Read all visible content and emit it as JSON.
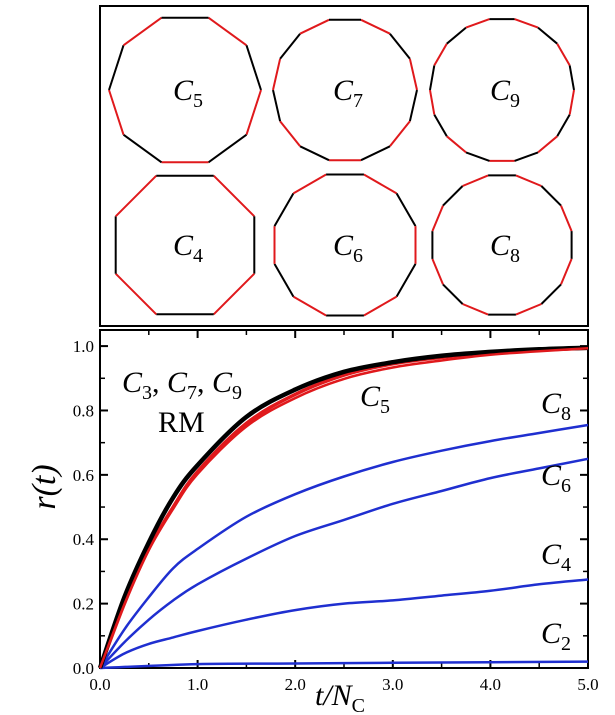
{
  "top_panel": {
    "polygons": [
      {
        "base": "C",
        "sub": "5",
        "sides": 10
      },
      {
        "base": "C",
        "sub": "7",
        "sides": 14
      },
      {
        "base": "C",
        "sub": "9",
        "sides": 18
      },
      {
        "base": "C",
        "sub": "4",
        "sides": 8
      },
      {
        "base": "C",
        "sub": "6",
        "sides": 12
      },
      {
        "base": "C",
        "sub": "8",
        "sides": 16
      }
    ],
    "colors": {
      "red": "#e0191c",
      "black": "#000000"
    }
  },
  "chart_data": {
    "type": "line",
    "xlabel": "t/N",
    "xlabel_sub": "C",
    "ylabel": "r(t)",
    "xlim": [
      0,
      5
    ],
    "ylim": [
      0,
      1.05
    ],
    "x_ticks": [
      "0.0",
      "1.0",
      "2.0",
      "3.0",
      "4.0",
      "5.0"
    ],
    "y_ticks": [
      "0.0",
      "0.2",
      "0.4",
      "0.6",
      "0.8",
      "1.0"
    ],
    "annotations": [
      {
        "text": "C3, C7, C9",
        "base": [
          "C",
          "C",
          "C"
        ],
        "subs": [
          "3",
          "7",
          "9"
        ]
      },
      {
        "text": "RM"
      },
      {
        "base": "C",
        "sub": "5"
      },
      {
        "base": "C",
        "sub": "8"
      },
      {
        "base": "C",
        "sub": "6"
      },
      {
        "base": "C",
        "sub": "4"
      },
      {
        "base": "C",
        "sub": "2"
      }
    ],
    "series": [
      {
        "label": "C3, C7, C9, RM",
        "color": "#000000",
        "x": [
          0,
          0.25,
          0.5,
          0.75,
          1.0,
          1.5,
          2.0,
          2.5,
          3.0,
          3.5,
          4.0,
          4.5,
          5.0
        ],
        "y": [
          0,
          0.22,
          0.39,
          0.53,
          0.63,
          0.78,
          0.865,
          0.92,
          0.95,
          0.97,
          0.982,
          0.99,
          0.995
        ]
      },
      {
        "label": "C5",
        "color": "#e0191c",
        "x": [
          0,
          0.25,
          0.5,
          0.75,
          1.0,
          1.5,
          2.0,
          2.5,
          3.0,
          3.5,
          4.0,
          4.5,
          5.0
        ],
        "y": [
          0,
          0.2,
          0.37,
          0.5,
          0.61,
          0.76,
          0.85,
          0.91,
          0.945,
          0.965,
          0.98,
          0.988,
          0.993
        ]
      },
      {
        "label": "C8",
        "color": "#1f2fd0",
        "x": [
          0,
          0.25,
          0.5,
          0.75,
          1.0,
          1.5,
          2.0,
          2.5,
          3.0,
          3.5,
          4.0,
          4.5,
          5.0
        ],
        "y": [
          0,
          0.12,
          0.22,
          0.31,
          0.37,
          0.47,
          0.54,
          0.595,
          0.64,
          0.675,
          0.705,
          0.73,
          0.755
        ]
      },
      {
        "label": "C6",
        "color": "#1f2fd0",
        "x": [
          0,
          0.25,
          0.5,
          0.75,
          1.0,
          1.5,
          2.0,
          2.5,
          3.0,
          3.5,
          4.0,
          4.5,
          5.0
        ],
        "y": [
          0,
          0.08,
          0.15,
          0.21,
          0.26,
          0.34,
          0.41,
          0.46,
          0.51,
          0.55,
          0.59,
          0.62,
          0.65
        ]
      },
      {
        "label": "C4",
        "color": "#1f2fd0",
        "x": [
          0,
          0.25,
          0.5,
          0.75,
          1.0,
          1.5,
          2.0,
          2.5,
          3.0,
          3.5,
          4.0,
          4.5,
          5.0
        ],
        "y": [
          0,
          0.045,
          0.075,
          0.095,
          0.115,
          0.15,
          0.18,
          0.2,
          0.21,
          0.225,
          0.24,
          0.26,
          0.275
        ]
      },
      {
        "label": "C2",
        "color": "#1f2fd0",
        "x": [
          0,
          1.0,
          2.0,
          3.0,
          4.0,
          5.0
        ],
        "y": [
          0,
          0.012,
          0.014,
          0.016,
          0.018,
          0.02
        ]
      }
    ]
  }
}
